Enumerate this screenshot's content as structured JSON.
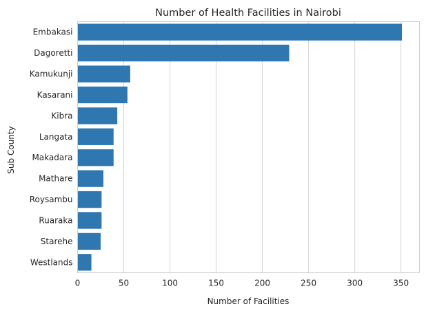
{
  "chart_data": {
    "type": "bar",
    "orientation": "horizontal",
    "title": "Number of Health Facilities in Nairobi",
    "xlabel": "Number of Facilities",
    "ylabel": "Sub County",
    "categories": [
      "Embakasi",
      "Dagoretti",
      "Kamukunji",
      "Kasarani",
      "Kibra",
      "Langata",
      "Makadara",
      "Mathare",
      "Roysambu",
      "Ruaraka",
      "Starehe",
      "Westlands"
    ],
    "values": [
      351,
      229,
      57,
      54,
      43,
      39,
      39,
      28,
      26,
      26,
      25,
      15
    ],
    "xlim": [
      0,
      370
    ],
    "xticks": [
      0,
      50,
      100,
      150,
      200,
      250,
      300,
      350
    ],
    "grid": true,
    "bar_color": "#2e77b0"
  }
}
